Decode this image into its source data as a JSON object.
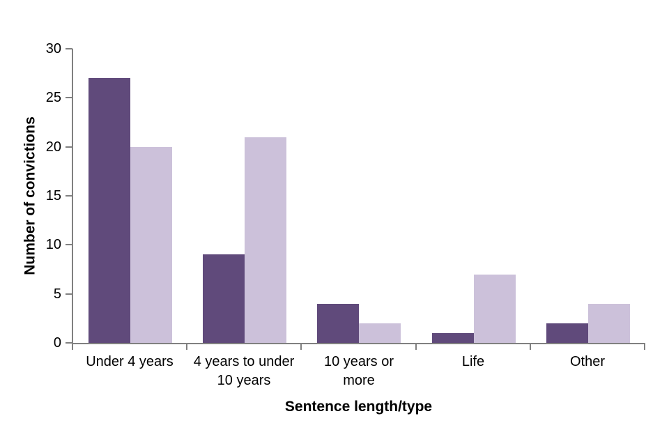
{
  "chart_data": {
    "type": "bar",
    "categories": [
      "Under 4 years",
      "4 years to under 10 years",
      "10 years or more",
      "Life",
      "Other"
    ],
    "series": [
      {
        "color": "#604A7B",
        "values": [
          27,
          9,
          4,
          1,
          2
        ]
      },
      {
        "color": "#CCC1DA",
        "values": [
          20,
          21,
          2,
          7,
          4
        ]
      }
    ],
    "xlabel": "Sentence length/type",
    "ylabel": "Number of convictions",
    "ylim": [
      0,
      30
    ],
    "yticks": [
      0,
      5,
      10,
      15,
      20,
      25,
      30
    ],
    "grid": false,
    "legend": false
  },
  "x_axis": {
    "tick_lines": [
      [
        "Under 4 years"
      ],
      [
        "4 years to under",
        "10 years"
      ],
      [
        "10 years or",
        "more"
      ],
      [
        "Life"
      ],
      [
        "Other"
      ]
    ]
  },
  "colors": {
    "axis": "#808080",
    "text": "#000000",
    "background": "#FFFFFF",
    "series_dark": "#604A7B",
    "series_light": "#CCC1DA"
  }
}
